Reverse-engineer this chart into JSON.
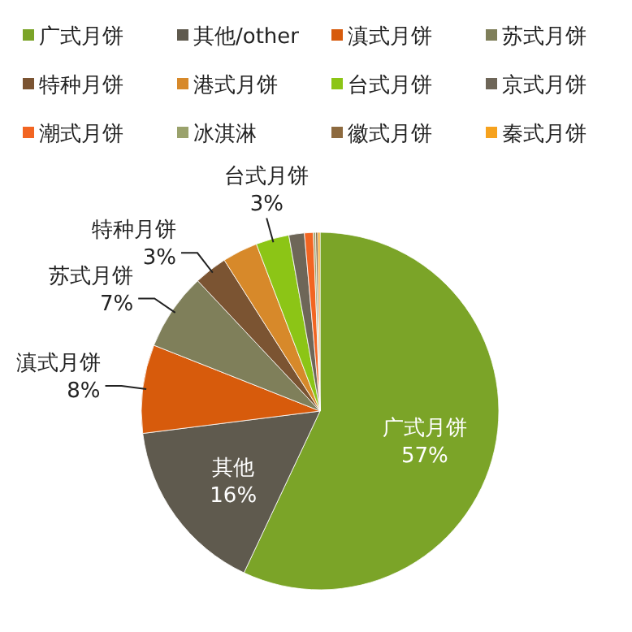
{
  "chart_data": {
    "type": "pie",
    "categories": [
      "广式月饼",
      "其他/other",
      "滇式月饼",
      "苏式月饼",
      "特种月饼",
      "港式月饼",
      "台式月饼",
      "京式月饼",
      "潮式月饼",
      "冰淇淋",
      "徽式月饼",
      "秦式月饼"
    ],
    "values": [
      57,
      16,
      8,
      7,
      3,
      3.2,
      3,
      1.4,
      0.8,
      0.2,
      0.2,
      0.2
    ],
    "value_labels": [
      "广式月饼\n57%",
      "其他\n16%",
      "滇式月饼\n8%",
      "苏式月饼\n7%",
      "特种月饼\n3%",
      null,
      "台式月饼\n3%",
      null,
      null,
      null,
      null,
      null
    ],
    "colors": [
      "#7ba428",
      "#5f5a4e",
      "#d75b0c",
      "#7f7f5a",
      "#7b5432",
      "#d7892a",
      "#8cc516",
      "#6e6658",
      "#f26522",
      "#9aa26c",
      "#8d6a3f",
      "#f6a21e"
    ],
    "legend": "top"
  }
}
